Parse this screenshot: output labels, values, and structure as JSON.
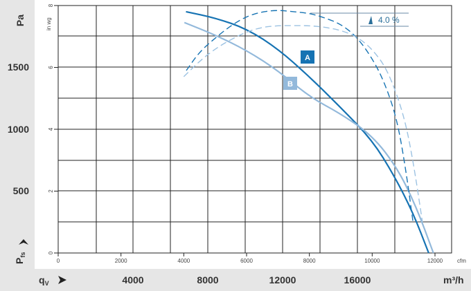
{
  "chart_data": {
    "type": "line",
    "title": "",
    "x_primary": {
      "label": "q",
      "label_sub": "V",
      "unit": "m³/h",
      "ticks": [
        4000,
        8000,
        12000,
        16000
      ],
      "range": [
        0,
        20000
      ]
    },
    "x_secondary": {
      "unit": "cfm",
      "ticks": [
        "0",
        "2000",
        "4000",
        "6000",
        "8000",
        "10000",
        "12000"
      ],
      "range": [
        0,
        12000
      ]
    },
    "y_primary": {
      "label": "P",
      "label_sub": "fs",
      "unit": "Pa",
      "ticks": [
        "500",
        "1000",
        "1500"
      ],
      "range": [
        0,
        2000
      ]
    },
    "y_secondary": {
      "unit": "in wg",
      "ticks": [
        "0",
        "2",
        "4",
        "6",
        "8"
      ],
      "range": [
        0,
        8
      ]
    },
    "annotation": {
      "text": "4.0 %"
    },
    "series": [
      {
        "name": "A",
        "kind": "pressure",
        "color": "#1673b3",
        "dash": false,
        "cfm": [
          4070,
          5000,
          6000,
          7000,
          8000,
          9000,
          10000,
          10700,
          11300,
          11800
        ],
        "inwg": [
          7.8,
          7.6,
          7.25,
          6.6,
          5.7,
          4.7,
          3.65,
          2.5,
          1.3,
          0.0
        ]
      },
      {
        "name": "B",
        "kind": "pressure",
        "color": "#93b9db",
        "dash": false,
        "cfm": [
          4020,
          5000,
          6000,
          7000,
          8000,
          9000,
          10000,
          10800,
          11400,
          11950
        ],
        "inwg": [
          7.45,
          7.05,
          6.55,
          5.9,
          5.05,
          4.5,
          3.8,
          2.75,
          1.5,
          0.0
        ]
      },
      {
        "name": "A efficiency",
        "kind": "efficiency",
        "color": "#1673b3",
        "dash": true,
        "cfm": [
          4080,
          4500,
          5000,
          5500,
          6000,
          6500,
          7000,
          7500,
          8000,
          8500,
          9000,
          9500,
          10000,
          10400,
          10800,
          11100,
          11300
        ],
        "inwg": [
          5.9,
          6.5,
          6.95,
          7.35,
          7.65,
          7.8,
          7.85,
          7.8,
          7.75,
          7.6,
          7.4,
          7.0,
          6.3,
          5.5,
          4.3,
          2.5,
          1.0
        ]
      },
      {
        "name": "B efficiency",
        "kind": "efficiency",
        "color": "#9cc2e2",
        "dash": true,
        "cfm": [
          4000,
          4500,
          5000,
          5500,
          6000,
          6500,
          7000,
          7500,
          8000,
          8500,
          9000,
          9500,
          10000,
          10500,
          11000,
          11300,
          11600
        ],
        "inwg": [
          5.7,
          6.2,
          6.6,
          6.9,
          7.15,
          7.3,
          7.35,
          7.35,
          7.35,
          7.3,
          7.2,
          7.0,
          6.6,
          5.9,
          4.5,
          3.0,
          1.0
        ]
      }
    ],
    "grid": true,
    "legend": "inline-badges"
  }
}
